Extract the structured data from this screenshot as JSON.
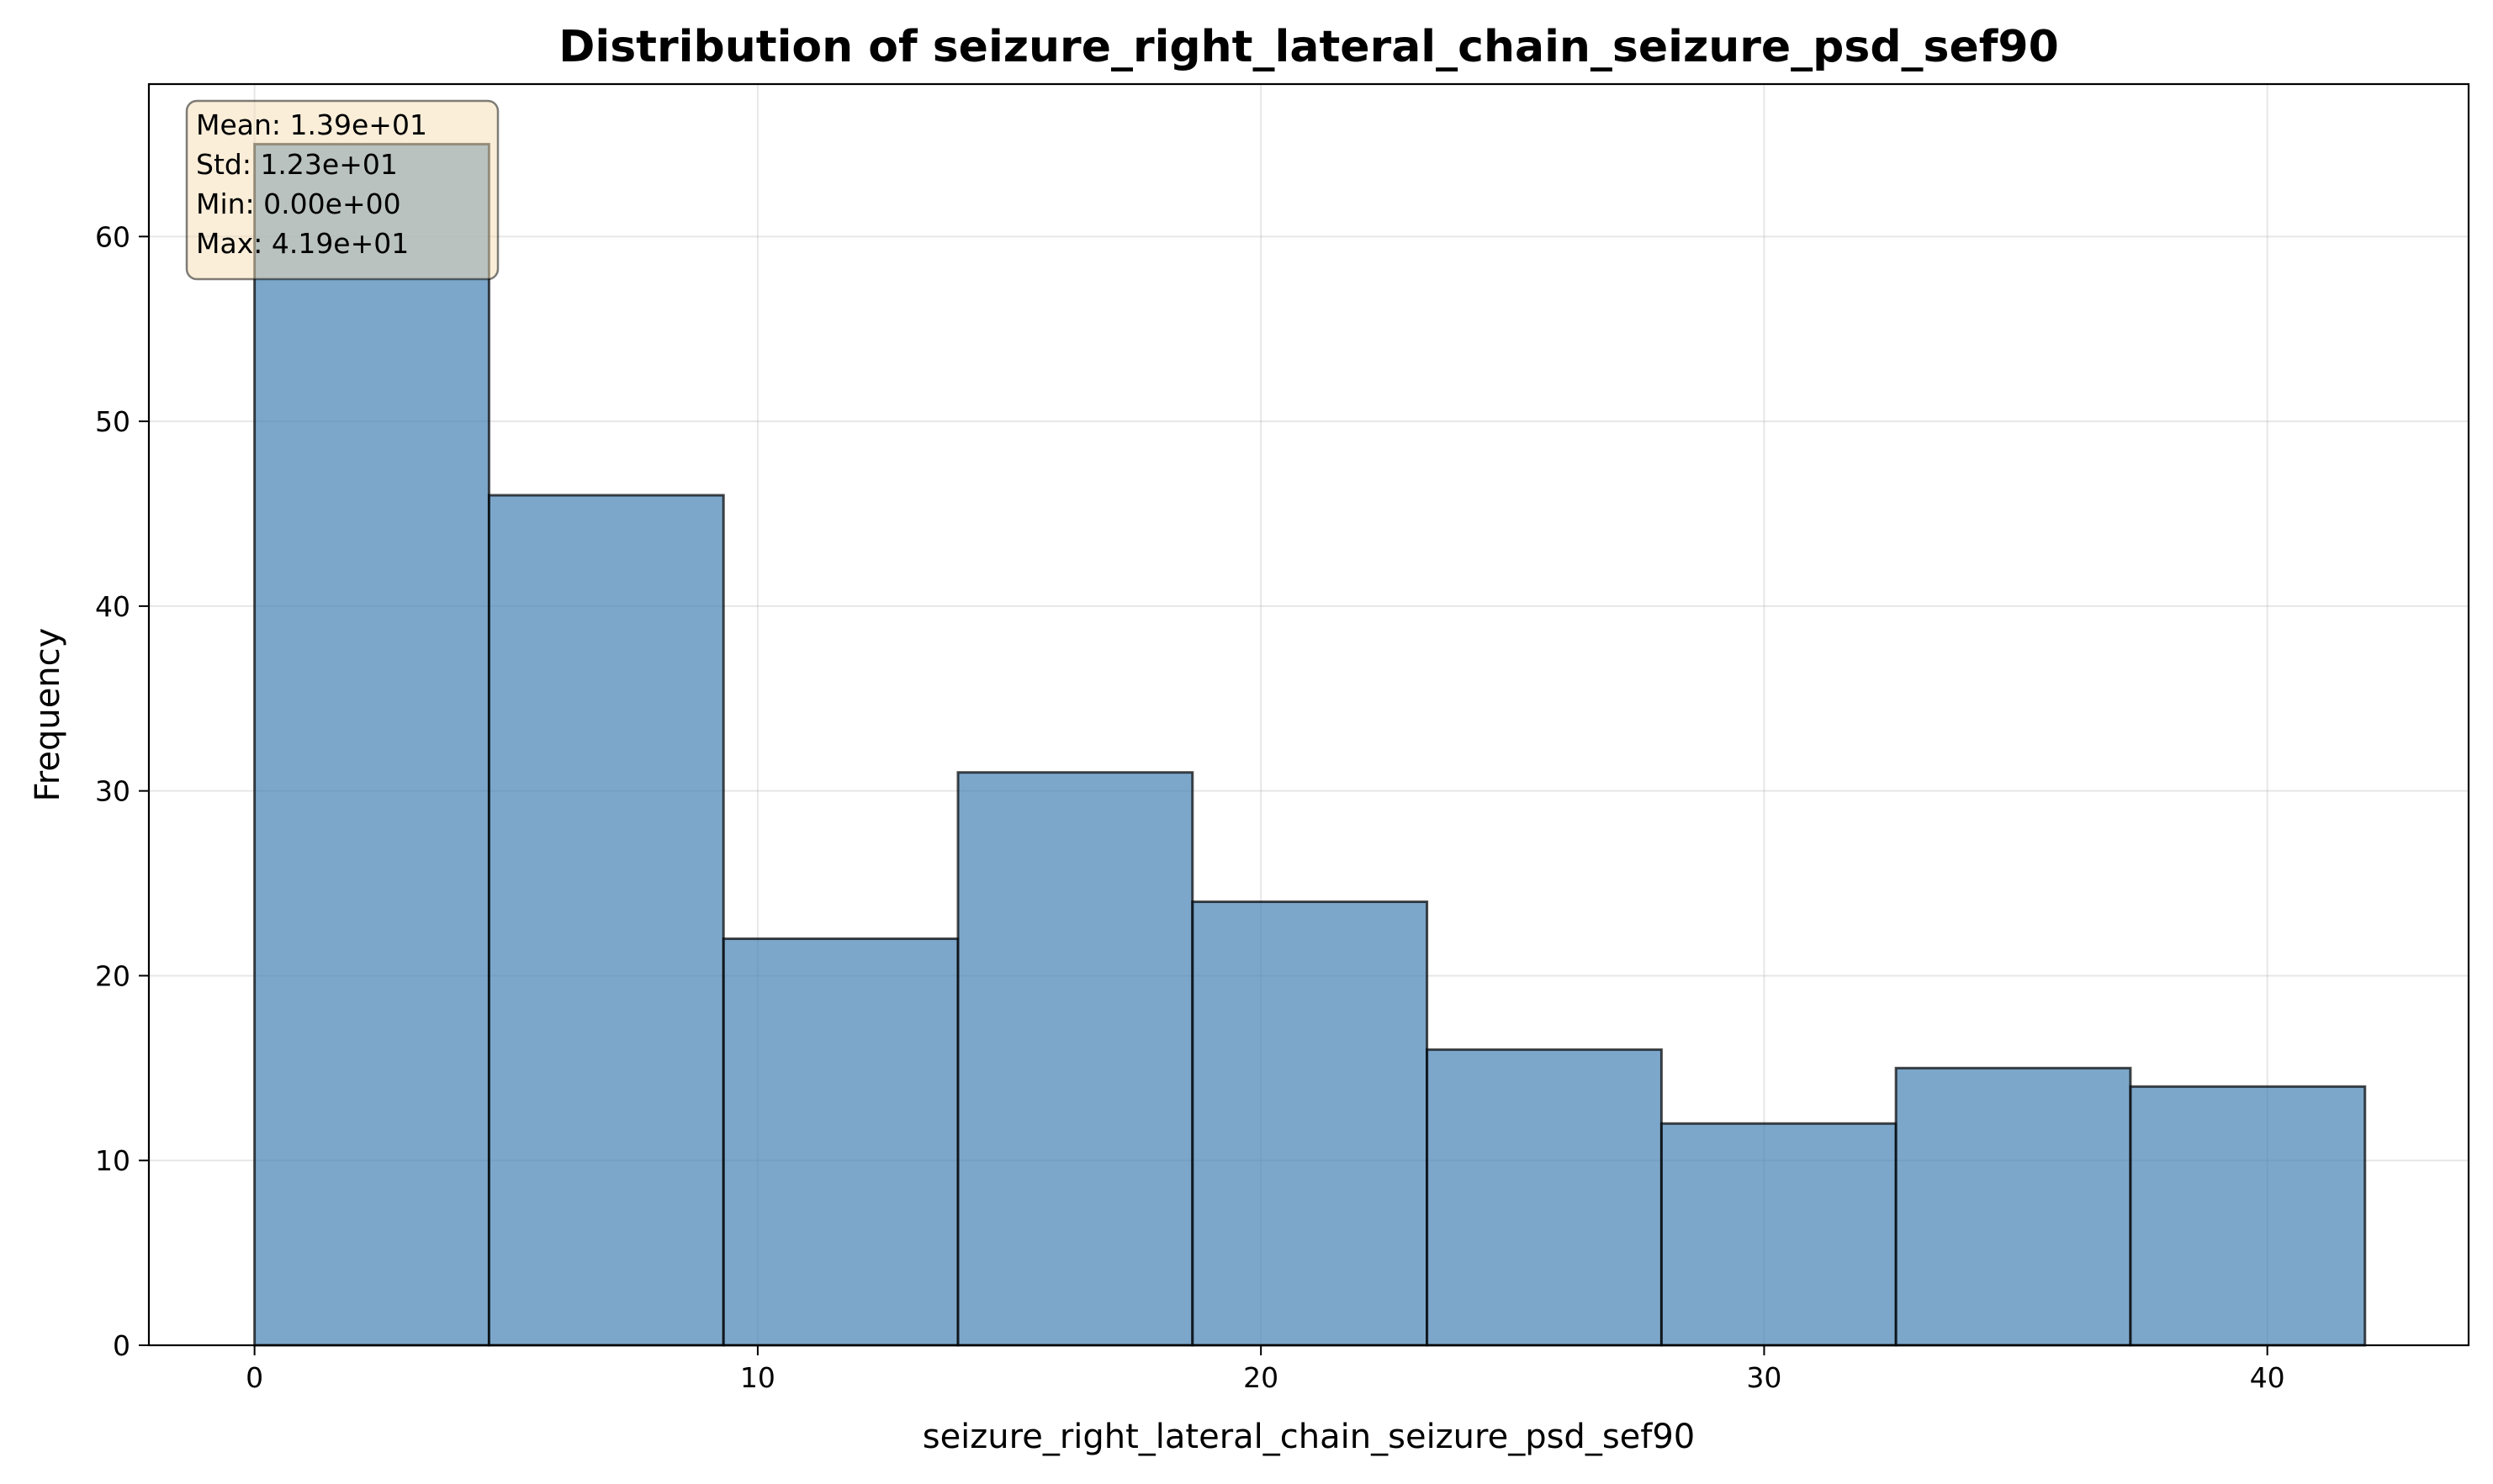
{
  "chart_data": {
    "type": "bar",
    "title": "Distribution of seizure_right_lateral_chain_seizure_psd_sef90",
    "xlabel": "seizure_right_lateral_chain_seizure_psd_sef90",
    "ylabel": "Frequency",
    "xlim": [
      -2.1,
      44.0
    ],
    "ylim": [
      0,
      68.25
    ],
    "xticks": [
      0,
      10,
      20,
      30,
      40
    ],
    "yticks": [
      0,
      10,
      20,
      30,
      40,
      50,
      60
    ],
    "grid": true,
    "bins": [
      {
        "x0": 0.0,
        "x1": 4.66,
        "count": 65
      },
      {
        "x0": 4.66,
        "x1": 9.32,
        "count": 46
      },
      {
        "x0": 9.32,
        "x1": 13.98,
        "count": 22
      },
      {
        "x0": 13.98,
        "x1": 18.64,
        "count": 31
      },
      {
        "x0": 18.64,
        "x1": 23.3,
        "count": 24
      },
      {
        "x0": 23.3,
        "x1": 27.96,
        "count": 16
      },
      {
        "x0": 27.96,
        "x1": 32.62,
        "count": 12
      },
      {
        "x0": 32.62,
        "x1": 37.28,
        "count": 15
      },
      {
        "x0": 37.28,
        "x1": 41.94,
        "count": 14
      }
    ],
    "bar_color": "#4682b4",
    "stats_box": [
      "Mean: 1.39e+01",
      "Std: 1.23e+01",
      "Min: 0.00e+00",
      "Max: 4.19e+01"
    ]
  }
}
